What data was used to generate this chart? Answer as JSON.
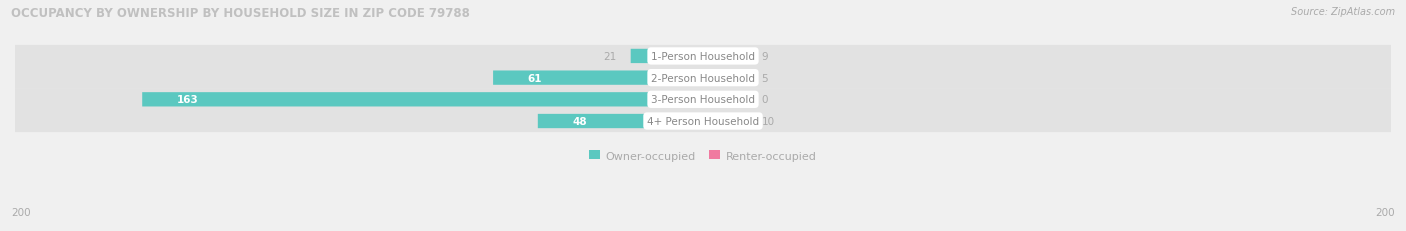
{
  "title": "OCCUPANCY BY OWNERSHIP BY HOUSEHOLD SIZE IN ZIP CODE 79788",
  "source": "Source: ZipAtlas.com",
  "categories": [
    "1-Person Household",
    "2-Person Household",
    "3-Person Household",
    "4+ Person Household"
  ],
  "owner_values": [
    21,
    61,
    163,
    48
  ],
  "renter_values": [
    9,
    5,
    0,
    10
  ],
  "owner_color": "#5bc8c0",
  "renter_color": "#f07aa0",
  "renter_color_zero": "#f5b8cc",
  "axis_max": 200,
  "bg_color": "#f0f0f0",
  "bar_bg_color": "#e2e2e2",
  "bar_bg_color2": "#ececec",
  "legend_owner": "Owner-occupied",
  "legend_renter": "Renter-occupied",
  "title_color": "#c0c0c0",
  "source_color": "#aaaaaa",
  "label_outside_color": "#aaaaaa",
  "label_inside_color": "#ffffff",
  "cat_label_color": "#888888"
}
